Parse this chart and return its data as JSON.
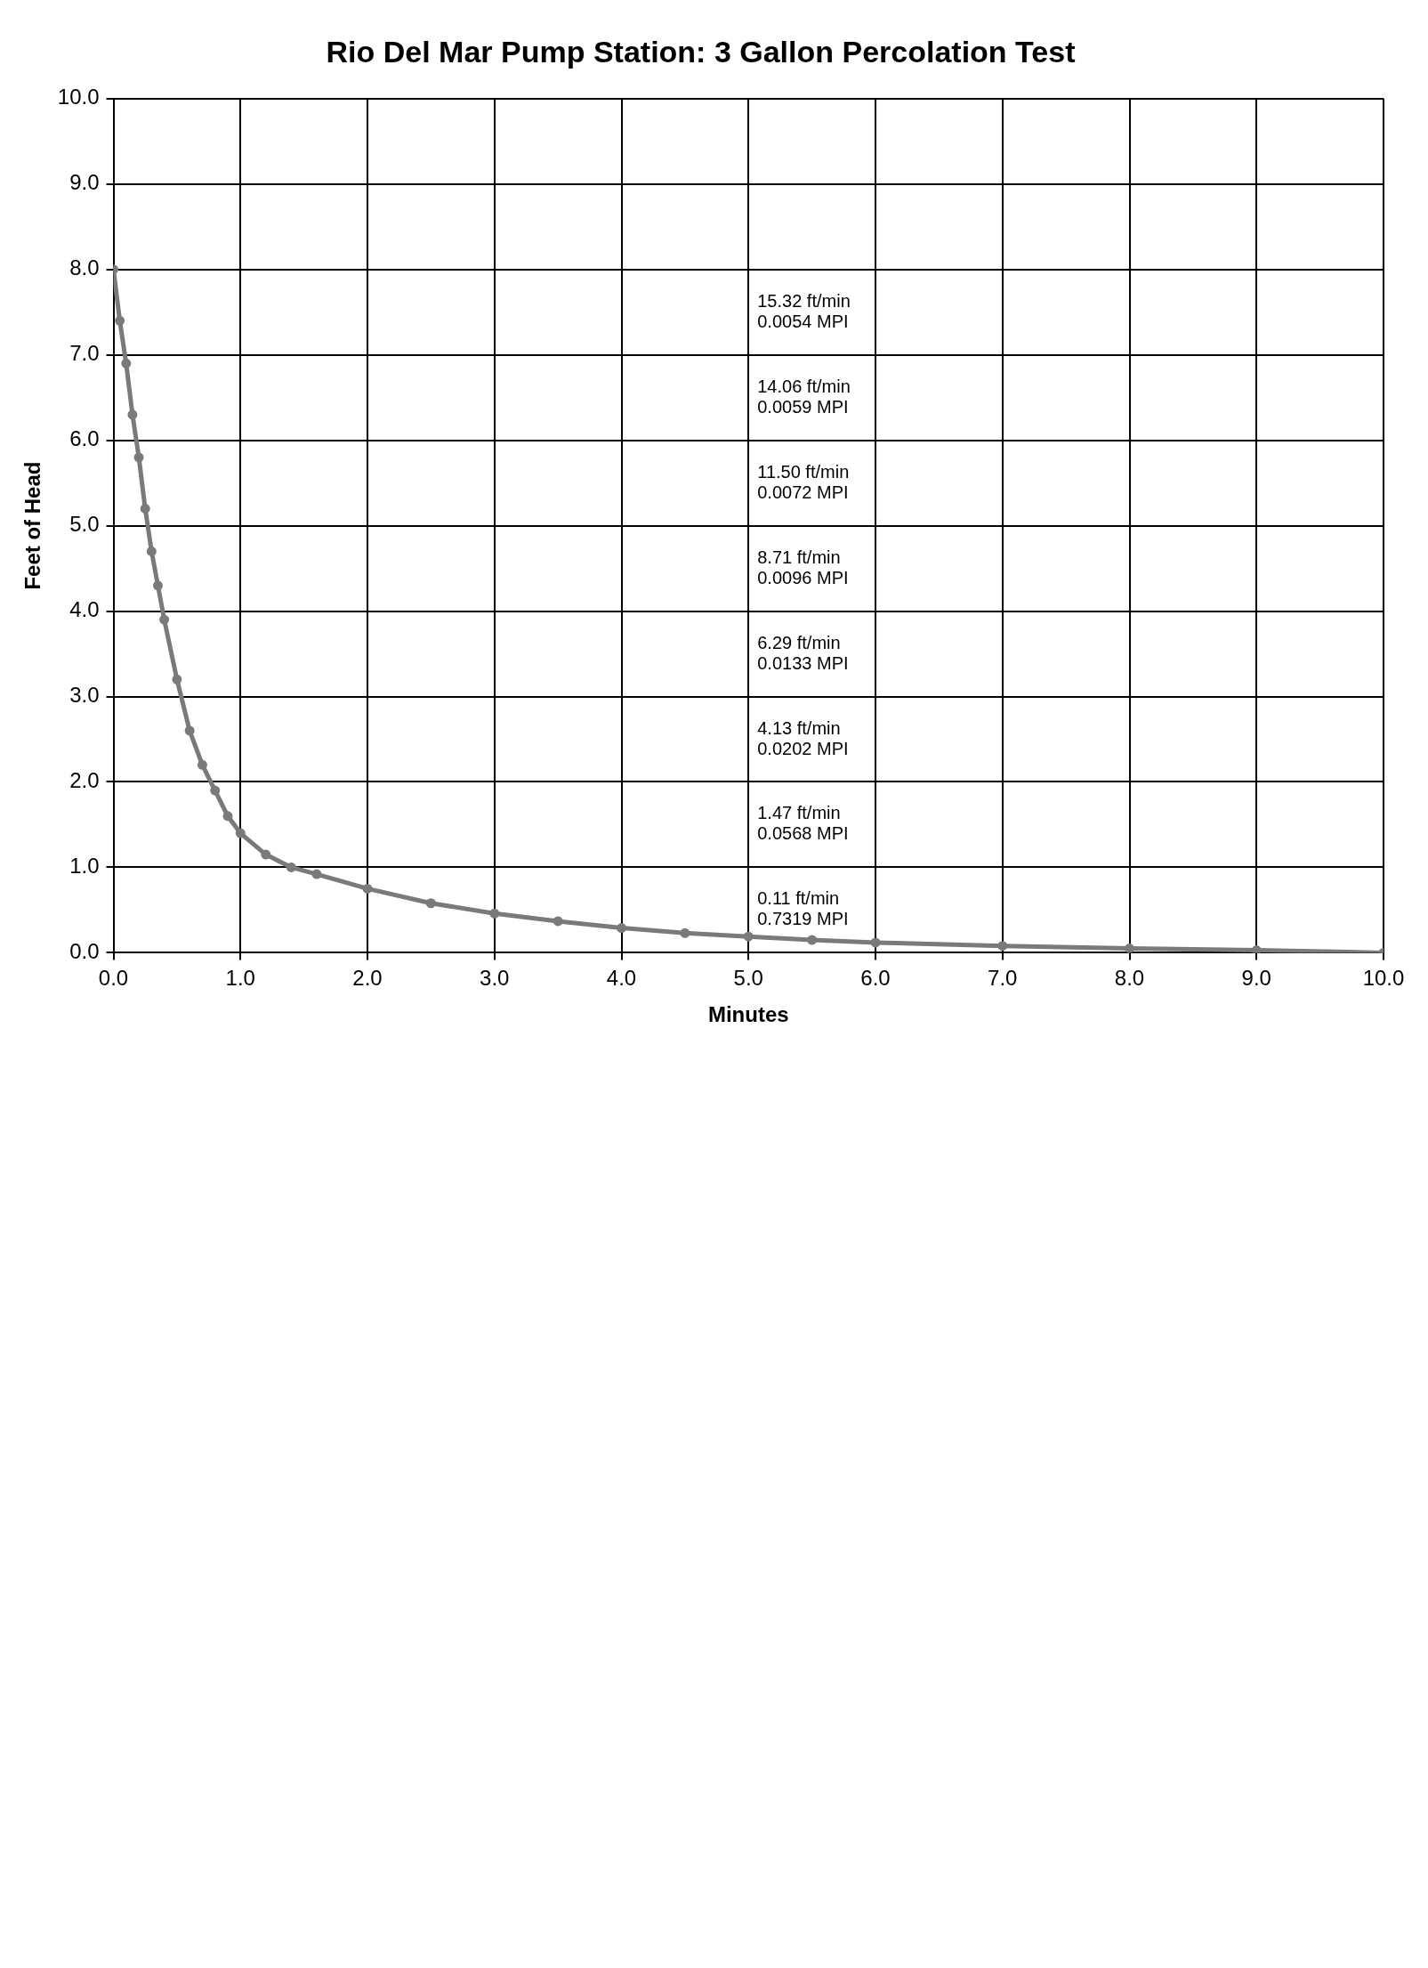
{
  "chart_data": {
    "type": "line",
    "title": "Rio Del Mar Pump Station: 3 Gallon Percolation Test",
    "xlabel": "Minutes",
    "ylabel": "Feet of Head",
    "x": [
      0,
      0.05,
      0.1,
      0.15,
      0.2,
      0.25,
      0.3,
      0.35,
      0.4,
      0.5,
      0.6,
      0.7,
      0.8,
      0.9,
      1.0,
      1.2,
      1.4,
      1.6,
      2.0,
      2.5,
      3.0,
      3.5,
      4.0,
      4.5,
      5.0,
      5.5,
      6.0,
      7.0,
      8.0,
      9.0,
      10.0
    ],
    "series": [
      {
        "color": "#7a7a7a",
        "values": [
          8.0,
          7.4,
          6.9,
          6.3,
          5.8,
          5.2,
          4.7,
          4.3,
          3.9,
          3.2,
          2.6,
          2.2,
          1.9,
          1.6,
          1.4,
          1.15,
          1.0,
          0.92,
          0.75,
          0.58,
          0.46,
          0.37,
          0.29,
          0.23,
          0.19,
          0.15,
          0.12,
          0.08,
          0.05,
          0.03,
          0.0
        ]
      }
    ],
    "xlim": [
      0,
      10
    ],
    "xticks": [
      {
        "value": 0,
        "label": "0.0"
      },
      {
        "value": 1,
        "label": "1.0"
      },
      {
        "value": 2,
        "label": "2.0"
      },
      {
        "value": 3,
        "label": "3.0"
      },
      {
        "value": 4,
        "label": "4.0"
      },
      {
        "value": 5,
        "label": "5.0"
      },
      {
        "value": 6,
        "label": "6.0"
      },
      {
        "value": 7,
        "label": "7.0"
      },
      {
        "value": 8,
        "label": "8.0"
      },
      {
        "value": 9,
        "label": "9.0"
      },
      {
        "value": 10,
        "label": "10.0"
      }
    ],
    "ylim": [
      0,
      10
    ],
    "yticks": [
      {
        "value": 0,
        "label": "0.0"
      },
      {
        "value": 1,
        "label": "1.0"
      },
      {
        "value": 2,
        "label": "2.0"
      },
      {
        "value": 3,
        "label": "3.0"
      },
      {
        "value": 4,
        "label": "4.0"
      },
      {
        "value": 5,
        "label": "5.0"
      },
      {
        "value": 6,
        "label": "6.0"
      },
      {
        "value": 7,
        "label": "7.0"
      },
      {
        "value": 8,
        "label": "8.0"
      },
      {
        "value": 9,
        "label": "9.0"
      },
      {
        "value": 10,
        "label": "10.0"
      }
    ],
    "grid": true,
    "marker": "circle",
    "line_style": "solid",
    "legend": false,
    "annotations": [
      "15.32 ft/min\n0.0054 MPI",
      "14.06 ft/min\n0.0059 MPI",
      "11.50 ft/min\n0.0072 MPI",
      "8.71 ft/min\n0.0096 MPI",
      "6.29 ft/min\n0.0133 MPI",
      "4.13 ft/min\n0.0202 MPI",
      "1.47 ft/min\n0.0568 MPI",
      "0.11 ft/min\n0.7319 MPI"
    ]
  }
}
